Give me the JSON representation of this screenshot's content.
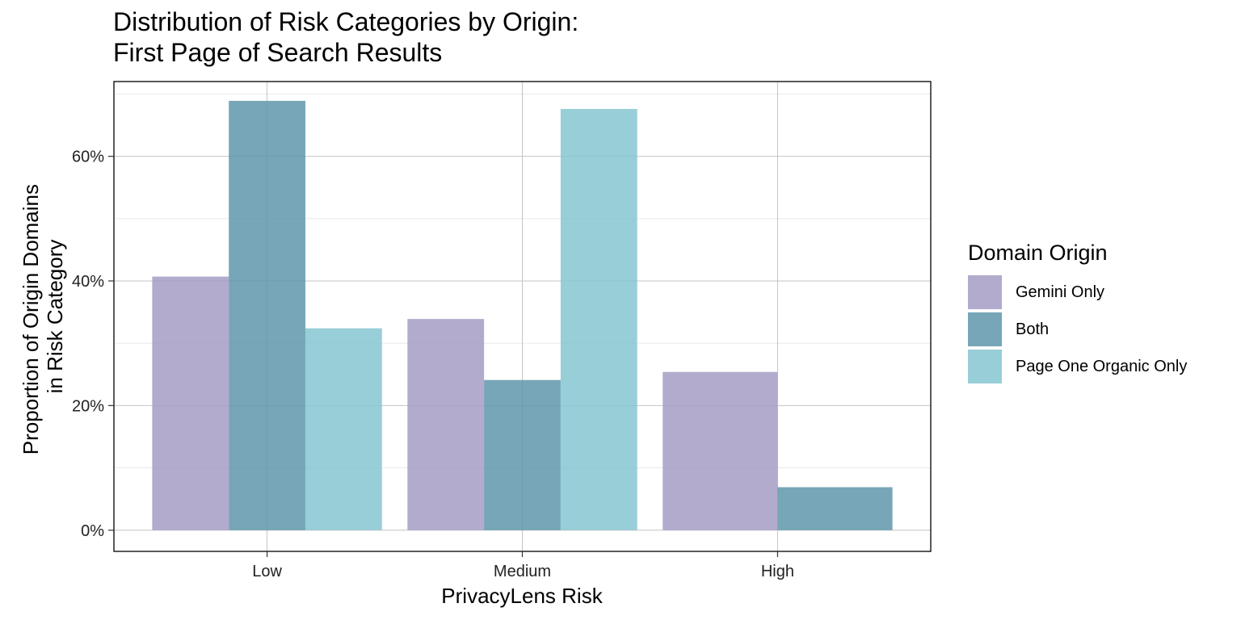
{
  "chart_data": {
    "type": "bar",
    "title": "Distribution of Risk Categories by Origin:\nFirst Page of Search Results",
    "xlabel": "PrivacyLens Risk",
    "ylabel_lines": [
      "Proportion of Origin Domains",
      "in Risk Category"
    ],
    "categories": [
      "Low",
      "Medium",
      "High"
    ],
    "series": [
      {
        "name": "Gemini Only",
        "color": "#a49cc4",
        "values": [
          0.407,
          0.339,
          0.254
        ]
      },
      {
        "name": "Both",
        "color": "#5e97ab",
        "values": [
          0.689,
          0.241,
          0.069
        ]
      },
      {
        "name": "Page One Organic Only",
        "color": "#86c6d0",
        "values": [
          0.324,
          0.676,
          0
        ]
      }
    ],
    "ylim": [
      -0.034,
      0.72
    ],
    "yticks": [
      0,
      0.2,
      0.4,
      0.6
    ],
    "ytick_labels": [
      "0%",
      "20%",
      "40%",
      "60%"
    ],
    "grid": true,
    "legend": {
      "title": "Domain Origin",
      "position": "right"
    }
  }
}
